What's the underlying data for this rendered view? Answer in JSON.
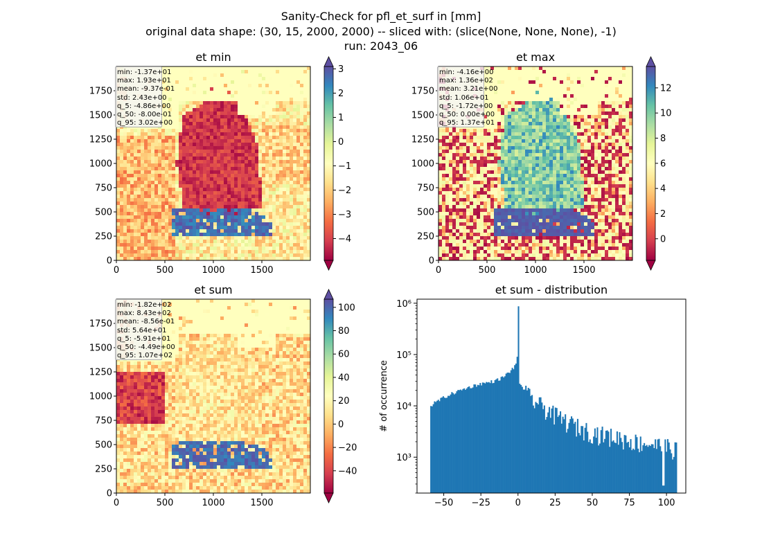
{
  "figure": {
    "title_lines": [
      "Sanity-Check for pfl_et_surf in [mm]",
      "original data shape: (30, 15, 2000, 2000) -- sliced with: (slice(None, None, None), -1)",
      "run: 2043_06"
    ],
    "colormap": "Spectral",
    "colormap_stops": [
      "#9e0142",
      "#d53e4f",
      "#f46d43",
      "#fdae61",
      "#fee08b",
      "#ffffbf",
      "#e6f598",
      "#abdda4",
      "#66c2a5",
      "#3288bd",
      "#5e4fa2"
    ],
    "histogram_color": "#1f77b4"
  },
  "chart_data": [
    {
      "type": "heatmap",
      "title": "et min",
      "xlabel": "",
      "ylabel": "",
      "xlim": [
        0,
        2000
      ],
      "ylim": [
        0,
        2000
      ],
      "x_ticks": [
        "0",
        "500",
        "1000",
        "1500"
      ],
      "y_ticks": [
        "0",
        "250",
        "500",
        "750",
        "1000",
        "1250",
        "1500",
        "1750"
      ],
      "colorbar": {
        "range": [
          -4.9,
          3.1
        ],
        "ticks": [
          "3",
          "2",
          "1",
          "0",
          "−1",
          "−2",
          "−3",
          "−4"
        ],
        "extend": "both"
      },
      "stats": [
        "min: -1.37e+01",
        "max: 1.93e+01",
        "mean: -9.37e-01",
        "std: 2.43e+00",
        "q_5: -4.86e+00",
        "q_50: -8.00e-01",
        "q_95: 3.02e+00"
      ]
    },
    {
      "type": "heatmap",
      "title": "et max",
      "xlabel": "",
      "ylabel": "",
      "xlim": [
        0,
        2000
      ],
      "ylim": [
        0,
        2000
      ],
      "x_ticks": [
        "0",
        "500",
        "1000",
        "1500"
      ],
      "y_ticks": [
        "0",
        "250",
        "500",
        "750",
        "1000",
        "1250",
        "1500",
        "1750"
      ],
      "colorbar": {
        "range": [
          -1.72,
          13.7
        ],
        "ticks": [
          "12",
          "10",
          "8",
          "6",
          "4",
          "2",
          "0"
        ],
        "extend": "both"
      },
      "stats": [
        "min: -4.16e+00",
        "max: 1.36e+02",
        "mean: 3.21e+00",
        "std: 1.06e+01",
        "q_5: -1.72e+00",
        "q_50: 0.00e+00",
        "q_95: 1.37e+01"
      ]
    },
    {
      "type": "heatmap",
      "title": "et sum",
      "xlabel": "",
      "ylabel": "",
      "xlim": [
        0,
        2000
      ],
      "ylim": [
        0,
        2000
      ],
      "x_ticks": [
        "0",
        "500",
        "1000",
        "1500"
      ],
      "y_ticks": [
        "0",
        "250",
        "500",
        "750",
        "1000",
        "1250",
        "1500",
        "1750"
      ],
      "colorbar": {
        "range": [
          -59.1,
          107
        ],
        "ticks": [
          "100",
          "80",
          "60",
          "40",
          "20",
          "0",
          "−20",
          "−40"
        ],
        "extend": "both"
      },
      "stats": [
        "min: -1.82e+02",
        "max: 8.43e+02",
        "mean: -8.56e-01",
        "std: 5.64e+01",
        "q_5: -5.91e+01",
        "q_50: -4.49e+00",
        "q_95: 1.07e+02"
      ]
    },
    {
      "type": "bar",
      "title": "et sum - distribution",
      "xlabel": "",
      "ylabel": "# of occurrence",
      "y_scale": "log",
      "xlim": [
        -68,
        113
      ],
      "ylim": [
        200,
        1200000
      ],
      "x_ticks": [
        "−50",
        "−25",
        "0",
        "25",
        "50",
        "75",
        "100"
      ],
      "y_ticks": [
        "10³",
        "10⁴",
        "10⁵",
        "10⁶"
      ],
      "bin_range": [
        -59.1,
        107
      ],
      "anchors": [
        [
          -59,
          10000
        ],
        [
          -55,
          12000
        ],
        [
          -50,
          14500
        ],
        [
          -45,
          17000
        ],
        [
          -40,
          19500
        ],
        [
          -35,
          22000
        ],
        [
          -30,
          24500
        ],
        [
          -25,
          27000
        ],
        [
          -20,
          28500
        ],
        [
          -15,
          31000
        ],
        [
          -10,
          36000
        ],
        [
          -5,
          48000
        ],
        [
          -2,
          60000
        ],
        [
          -0.5,
          85000
        ],
        [
          0,
          830000
        ],
        [
          0.5,
          28000
        ],
        [
          2,
          26000
        ],
        [
          5,
          19000
        ],
        [
          10,
          14000
        ],
        [
          15,
          11000
        ],
        [
          20,
          9000
        ],
        [
          25,
          7000
        ],
        [
          30,
          5800
        ],
        [
          40,
          4200
        ],
        [
          50,
          3300
        ],
        [
          60,
          2800
        ],
        [
          70,
          2500
        ],
        [
          80,
          2100
        ],
        [
          90,
          1900
        ],
        [
          100,
          1700
        ],
        [
          106,
          1500
        ]
      ]
    }
  ]
}
